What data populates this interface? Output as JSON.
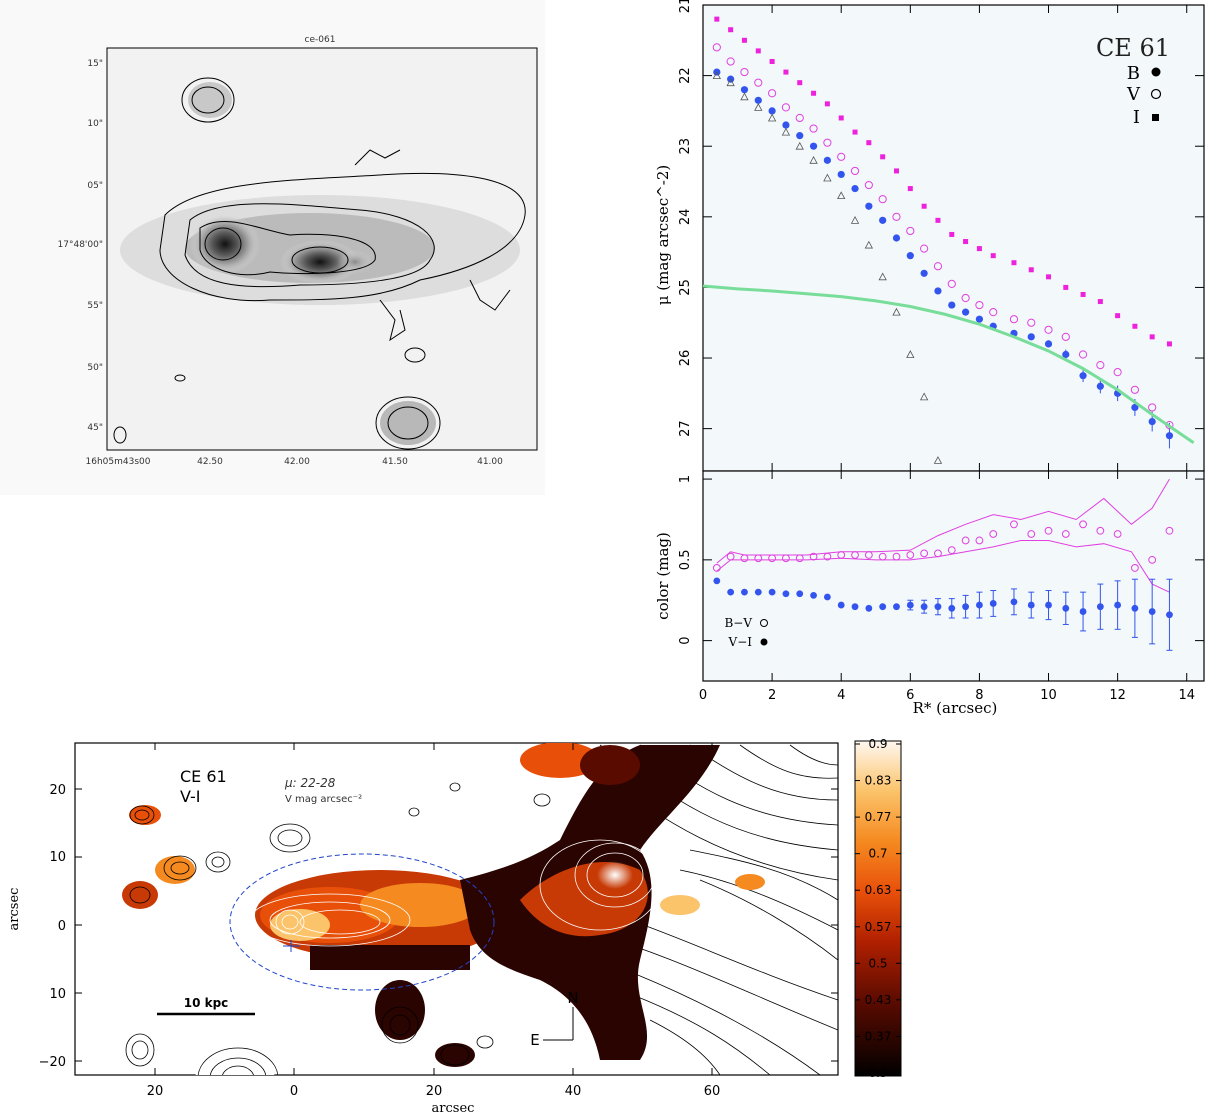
{
  "chart_data": [
    {
      "type": "image",
      "panel": "top-left",
      "title": "ce-061",
      "y_tick_labels": [
        "15\"",
        "10\"",
        "05\"",
        "17°48'00\"",
        "55\"",
        "50\"",
        "45\""
      ],
      "x_tick_labels": [
        "16h05m43s00",
        "42.50",
        "42.00",
        "41.50",
        "41.00"
      ],
      "grayscale": true,
      "contours": true
    },
    {
      "type": "scatter",
      "panel": "top-right",
      "title": "CE 61",
      "ylabel": "μ (mag arcsec^-2)",
      "xlim": [
        0,
        14.5
      ],
      "ylim": [
        27.6,
        21
      ],
      "y_inverted": true,
      "yticks": [
        21,
        22,
        23,
        24,
        25,
        26,
        27
      ],
      "legend": [
        {
          "label": "B",
          "marker": "filled-circle"
        },
        {
          "label": "V",
          "marker": "open-circle"
        },
        {
          "label": "I",
          "marker": "filled-square"
        }
      ],
      "legend_position": "top-right",
      "series": [
        {
          "name": "B",
          "color": "#3355ee",
          "x": [
            0.4,
            0.8,
            1.2,
            1.6,
            2.0,
            2.4,
            2.8,
            3.2,
            3.6,
            4.0,
            4.4,
            4.8,
            5.2,
            5.6,
            6.0,
            6.4,
            6.8,
            7.2,
            7.6,
            8.0,
            8.4,
            9.0,
            9.5,
            10.0,
            10.5,
            11.0,
            11.5,
            12.0,
            12.5,
            13.0,
            13.5
          ],
          "y": [
            21.95,
            22.05,
            22.2,
            22.35,
            22.5,
            22.7,
            22.85,
            23.0,
            23.2,
            23.4,
            23.6,
            23.85,
            24.05,
            24.3,
            24.55,
            24.8,
            25.05,
            25.25,
            25.35,
            25.45,
            25.55,
            25.65,
            25.7,
            25.8,
            25.95,
            26.25,
            26.4,
            26.5,
            26.7,
            26.9,
            27.1
          ],
          "err": [
            0,
            0,
            0,
            0,
            0,
            0,
            0,
            0,
            0,
            0,
            0,
            0,
            0,
            0,
            0,
            0,
            0,
            0,
            0,
            0,
            0,
            0,
            0,
            0.05,
            0.07,
            0.09,
            0.1,
            0.11,
            0.12,
            0.14,
            0.18
          ]
        },
        {
          "name": "V",
          "color": "#e040e0",
          "x": [
            0.4,
            0.8,
            1.2,
            1.6,
            2.0,
            2.4,
            2.8,
            3.2,
            3.6,
            4.0,
            4.4,
            4.8,
            5.2,
            5.6,
            6.0,
            6.4,
            6.8,
            7.2,
            7.6,
            8.0,
            8.4,
            9.0,
            9.5,
            10.0,
            10.5,
            11.0,
            11.5,
            12.0,
            12.5,
            13.0,
            13.5
          ],
          "y": [
            21.6,
            21.8,
            21.95,
            22.1,
            22.25,
            22.45,
            22.6,
            22.75,
            22.95,
            23.15,
            23.35,
            23.55,
            23.75,
            24.0,
            24.2,
            24.45,
            24.7,
            24.95,
            25.15,
            25.25,
            25.35,
            25.45,
            25.5,
            25.6,
            25.7,
            25.95,
            26.1,
            26.2,
            26.45,
            26.7,
            26.95
          ]
        },
        {
          "name": "I",
          "color": "#ee22dd",
          "x": [
            0.4,
            0.8,
            1.2,
            1.6,
            2.0,
            2.4,
            2.8,
            3.2,
            3.6,
            4.0,
            4.4,
            4.8,
            5.2,
            5.6,
            6.0,
            6.4,
            6.8,
            7.2,
            7.6,
            8.0,
            8.4,
            9.0,
            9.5,
            10.0,
            10.5,
            11.0,
            11.5,
            12.0,
            12.5,
            13.0,
            13.5
          ],
          "y": [
            21.2,
            21.35,
            21.5,
            21.65,
            21.8,
            21.95,
            22.1,
            22.25,
            22.4,
            22.6,
            22.8,
            22.95,
            23.15,
            23.35,
            23.6,
            23.85,
            24.05,
            24.25,
            24.35,
            24.45,
            24.55,
            24.65,
            24.75,
            24.85,
            25.0,
            25.1,
            25.2,
            25.4,
            25.55,
            25.7,
            25.8
          ]
        },
        {
          "name": "",
          "marker": "open-triangle",
          "color": "#555",
          "x": [
            0.4,
            0.8,
            1.2,
            1.6,
            2.0,
            2.4,
            2.8,
            3.2,
            3.6,
            4.0,
            4.4,
            4.8,
            5.2,
            5.6,
            6.0,
            6.4,
            6.8
          ],
          "y": [
            22.0,
            22.1,
            22.3,
            22.45,
            22.6,
            22.8,
            23.0,
            23.2,
            23.45,
            23.7,
            24.05,
            24.4,
            24.85,
            25.35,
            25.95,
            26.55,
            27.45
          ]
        },
        {
          "name": "",
          "type": "line",
          "color": "#77dd99",
          "x": [
            0,
            1,
            2,
            3,
            4,
            5,
            6,
            7,
            8,
            9,
            10,
            11,
            12,
            13,
            14.2
          ],
          "y": [
            24.98,
            25.02,
            25.05,
            25.09,
            25.13,
            25.19,
            25.27,
            25.38,
            25.52,
            25.7,
            25.9,
            26.15,
            26.45,
            26.8,
            27.2
          ]
        }
      ]
    },
    {
      "type": "scatter",
      "panel": "middle-right",
      "xlabel": "R* (arcsec)",
      "ylabel": "color (mag)",
      "xlim": [
        0,
        14.5
      ],
      "ylim": [
        -0.25,
        1.05
      ],
      "xticks": [
        0,
        2,
        4,
        6,
        8,
        10,
        12,
        14
      ],
      "yticks": [
        0,
        0.5,
        1
      ],
      "yticklabels": [
        "0",
        "0.5",
        "1"
      ],
      "legend": [
        {
          "label": "B−V",
          "marker": "open-circle"
        },
        {
          "label": "V−I",
          "marker": "filled-circle"
        }
      ],
      "legend_position": "bottom-left",
      "series": [
        {
          "name": "B−V",
          "color": "#e040e0",
          "x": [
            0.4,
            0.8,
            1.2,
            1.6,
            2.0,
            2.4,
            2.8,
            3.2,
            3.6,
            4.0,
            4.4,
            4.8,
            5.2,
            5.6,
            6.0,
            6.4,
            6.8,
            7.2,
            7.6,
            8.0,
            8.4,
            9.0,
            9.5,
            10.0,
            10.5,
            11.0,
            11.5,
            12.0,
            12.5,
            13.0,
            13.5
          ],
          "y": [
            0.45,
            0.52,
            0.51,
            0.51,
            0.51,
            0.51,
            0.51,
            0.52,
            0.52,
            0.53,
            0.53,
            0.53,
            0.52,
            0.52,
            0.53,
            0.54,
            0.54,
            0.56,
            0.62,
            0.62,
            0.66,
            0.72,
            0.66,
            0.68,
            0.66,
            0.72,
            0.68,
            0.66,
            0.45,
            0.5,
            0.68
          ]
        },
        {
          "name": "V−I",
          "color": "#3355ee",
          "x": [
            0.4,
            0.8,
            1.2,
            1.6,
            2.0,
            2.4,
            2.8,
            3.2,
            3.6,
            4.0,
            4.4,
            4.8,
            5.2,
            5.6,
            6.0,
            6.4,
            6.8,
            7.2,
            7.6,
            8.0,
            8.4,
            9.0,
            9.5,
            10.0,
            10.5,
            11.0,
            11.5,
            12.0,
            12.5,
            13.0,
            13.5
          ],
          "y": [
            0.37,
            0.3,
            0.3,
            0.3,
            0.3,
            0.29,
            0.29,
            0.28,
            0.27,
            0.22,
            0.21,
            0.2,
            0.21,
            0.21,
            0.22,
            0.21,
            0.21,
            0.2,
            0.21,
            0.22,
            0.23,
            0.24,
            0.22,
            0.22,
            0.2,
            0.18,
            0.21,
            0.22,
            0.2,
            0.18,
            0.16
          ],
          "err": [
            0,
            0,
            0,
            0,
            0,
            0,
            0,
            0,
            0,
            0,
            0,
            0,
            0,
            0,
            0.03,
            0.04,
            0.05,
            0.06,
            0.07,
            0.08,
            0.08,
            0.08,
            0.08,
            0.09,
            0.1,
            0.12,
            0.14,
            0.15,
            0.18,
            0.2,
            0.22
          ]
        }
      ],
      "bounds_upper": {
        "x": [
          0.4,
          0.8,
          1.2,
          2,
          3,
          4,
          5,
          6,
          6.8,
          7.6,
          8.4,
          9.2,
          10,
          10.8,
          11.6,
          12.4,
          13,
          13.5
        ],
        "y": [
          0.48,
          0.55,
          0.53,
          0.53,
          0.53,
          0.55,
          0.55,
          0.56,
          0.65,
          0.72,
          0.78,
          0.75,
          0.8,
          0.75,
          0.88,
          0.72,
          0.82,
          1.0
        ]
      },
      "bounds_lower": {
        "x": [
          0.4,
          0.8,
          1.2,
          2,
          3,
          4,
          5,
          6,
          6.8,
          7.6,
          8.4,
          9.2,
          10,
          10.8,
          11.6,
          12.4,
          13,
          13.5
        ],
        "y": [
          0.43,
          0.5,
          0.5,
          0.5,
          0.5,
          0.51,
          0.5,
          0.5,
          0.52,
          0.55,
          0.58,
          0.62,
          0.62,
          0.58,
          0.6,
          0.55,
          0.35,
          0.3
        ]
      }
    },
    {
      "type": "heatmap",
      "panel": "bottom",
      "title": "CE 61",
      "subtitle": "V-I",
      "annotation_line1": "μ: 22-28",
      "annotation_line2": "V mag arcsec⁻²",
      "xlabel": "arcsec",
      "ylabel": "arcsec",
      "xtick_labels": [
        "20",
        "0",
        "20",
        "40",
        "60"
      ],
      "ytick_labels": [
        "20",
        "10",
        "0",
        "10",
        "−20"
      ],
      "scale_bar_label": "10 kpc",
      "compass_north": "N",
      "compass_east": "E",
      "colorbar_ticks": [
        "0.9",
        "0.83",
        "0.77",
        "0.7",
        "0.63",
        "0.57",
        "0.5",
        "0.43",
        "0.37",
        "0.3"
      ],
      "colorbar_range": [
        0.3,
        0.9
      ]
    }
  ]
}
